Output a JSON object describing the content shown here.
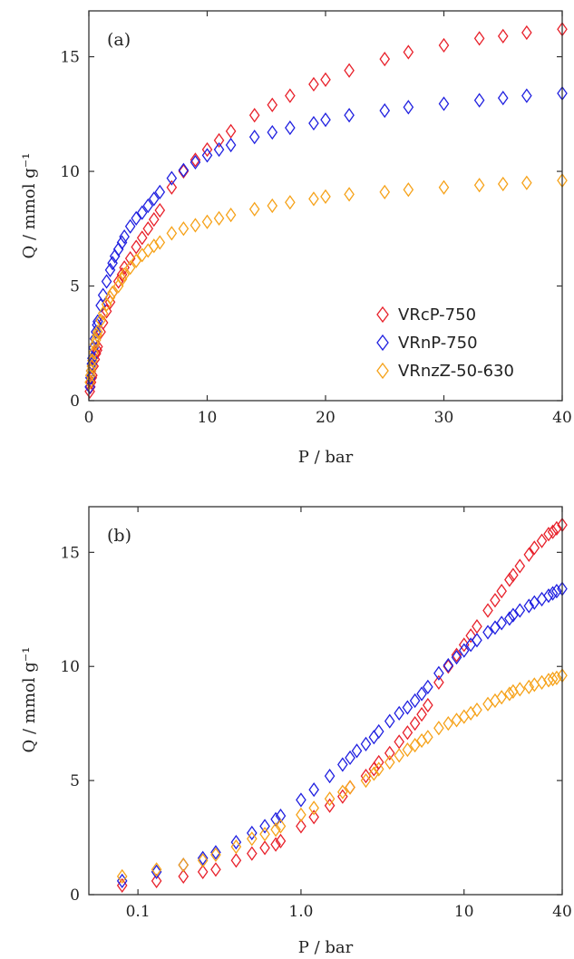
{
  "chart_data": [
    {
      "type": "scatter",
      "panel_label": "(a)",
      "xlabel": "P / bar",
      "ylabel": "Q / mmol g⁻¹",
      "xscale": "linear",
      "xlim": [
        0,
        40
      ],
      "ylim": [
        0,
        17
      ],
      "xticks": [
        0,
        10,
        20,
        30,
        40
      ],
      "xtick_labels": [
        "0",
        "10",
        "20",
        "30",
        "40"
      ],
      "yticks": [
        0,
        5,
        10,
        15
      ],
      "ytick_labels": [
        "0",
        "5",
        "10",
        "15"
      ],
      "legend_position": "lower-right",
      "series": [
        {
          "name": "VRcP-750",
          "color": "#e8202a",
          "marker": "diamond",
          "x": [
            0.08,
            0.13,
            0.19,
            0.25,
            0.3,
            0.4,
            0.5,
            0.6,
            0.7,
            0.75,
            1.0,
            1.2,
            1.5,
            1.8,
            2.0,
            2.5,
            2.8,
            3.0,
            3.5,
            4.0,
            4.5,
            5.0,
            5.5,
            6.0,
            7.0,
            8.0,
            9.0,
            10.0,
            11.0,
            12.0,
            14.0,
            15.5,
            17.0,
            19.0,
            20.0,
            22.0,
            25.0,
            27.0,
            30.0,
            33.0,
            35.0,
            37.0,
            40.0
          ],
          "y": [
            0.4,
            0.6,
            0.8,
            1.0,
            1.1,
            1.5,
            1.8,
            2.05,
            2.2,
            2.35,
            3.0,
            3.4,
            3.9,
            4.3,
            4.7,
            5.2,
            5.5,
            5.8,
            6.2,
            6.7,
            7.1,
            7.5,
            7.9,
            8.3,
            9.3,
            10.0,
            10.5,
            10.95,
            11.35,
            11.75,
            12.45,
            12.9,
            13.3,
            13.8,
            14.0,
            14.4,
            14.9,
            15.2,
            15.5,
            15.8,
            15.9,
            16.05,
            16.2
          ]
        },
        {
          "name": "VRnP-750",
          "color": "#2020e0",
          "marker": "diamond",
          "x": [
            0.08,
            0.13,
            0.19,
            0.25,
            0.3,
            0.4,
            0.5,
            0.6,
            0.7,
            0.75,
            1.0,
            1.2,
            1.5,
            1.8,
            2.0,
            2.2,
            2.5,
            2.8,
            3.0,
            3.5,
            4.0,
            4.5,
            5.0,
            5.5,
            6.0,
            7.0,
            8.0,
            9.0,
            10.0,
            11.0,
            12.0,
            14.0,
            15.5,
            17.0,
            19.0,
            20.0,
            22.0,
            25.0,
            27.0,
            30.0,
            33.0,
            35.0,
            37.0,
            40.0
          ],
          "y": [
            0.6,
            1.0,
            1.3,
            1.6,
            1.85,
            2.3,
            2.7,
            3.0,
            3.3,
            3.45,
            4.15,
            4.6,
            5.2,
            5.7,
            6.0,
            6.3,
            6.6,
            6.9,
            7.15,
            7.6,
            7.95,
            8.2,
            8.5,
            8.8,
            9.1,
            9.7,
            10.05,
            10.4,
            10.7,
            10.95,
            11.15,
            11.5,
            11.7,
            11.9,
            12.1,
            12.25,
            12.45,
            12.65,
            12.8,
            12.95,
            13.1,
            13.2,
            13.3,
            13.4
          ]
        },
        {
          "name": "VRnzZ-50-630",
          "color": "#f6a219",
          "marker": "diamond",
          "x": [
            0.08,
            0.13,
            0.19,
            0.25,
            0.3,
            0.4,
            0.5,
            0.6,
            0.7,
            0.75,
            1.0,
            1.2,
            1.5,
            1.8,
            2.0,
            2.5,
            2.8,
            3.0,
            3.5,
            4.0,
            4.5,
            5.0,
            5.5,
            6.0,
            7.0,
            8.0,
            9.0,
            10.0,
            11.0,
            12.0,
            14.0,
            15.5,
            17.0,
            19.0,
            20.0,
            22.0,
            25.0,
            27.0,
            30.0,
            33.0,
            35.0,
            37.0,
            40.0
          ],
          "y": [
            0.8,
            1.1,
            1.3,
            1.5,
            1.75,
            2.1,
            2.45,
            2.65,
            2.85,
            3.0,
            3.5,
            3.8,
            4.2,
            4.5,
            4.7,
            5.0,
            5.3,
            5.5,
            5.8,
            6.1,
            6.35,
            6.55,
            6.75,
            6.9,
            7.3,
            7.5,
            7.65,
            7.8,
            7.95,
            8.1,
            8.35,
            8.5,
            8.65,
            8.8,
            8.9,
            9.0,
            9.1,
            9.2,
            9.3,
            9.4,
            9.45,
            9.5,
            9.6
          ]
        }
      ]
    },
    {
      "type": "scatter",
      "panel_label": "(b)",
      "xlabel": "P / bar",
      "ylabel": "Q / mmol g⁻¹",
      "xscale": "log",
      "xlim": [
        0.05,
        40
      ],
      "ylim": [
        0,
        17
      ],
      "xticks": [
        0.1,
        1.0,
        10,
        40
      ],
      "xtick_labels": [
        "0.1",
        "1.0",
        "10",
        "40"
      ],
      "yticks": [
        0,
        5,
        10,
        15
      ],
      "ytick_labels": [
        "0",
        "5",
        "10",
        "15"
      ],
      "series_from_panel": 0
    }
  ]
}
